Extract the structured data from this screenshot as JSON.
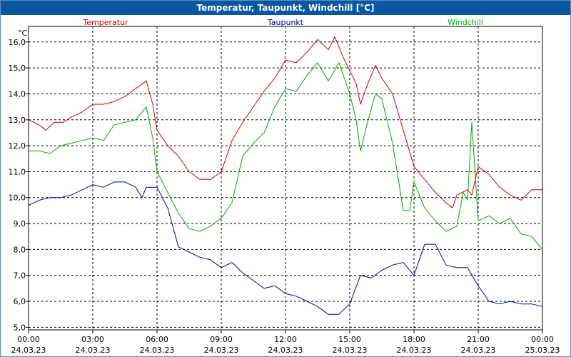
{
  "window": {
    "title": "Temperatur, Taupunkt, Windchill [°C]"
  },
  "chart_data": {
    "type": "line",
    "title": "Temperatur, Taupunkt, Windchill [°C]",
    "ylabel": "°C",
    "xlabel": "",
    "ylim": [
      4.9,
      16.6
    ],
    "xlim": [
      0,
      24
    ],
    "grid": true,
    "yticks": [
      5.0,
      6.0,
      7.0,
      8.0,
      9.0,
      10.0,
      11.0,
      12.0,
      13.0,
      14.0,
      15.0,
      16.0
    ],
    "ytick_labels": [
      "5,0",
      "6,0",
      "7,0",
      "8,0",
      "9,0",
      "10,0",
      "11,0",
      "12,0",
      "13,0",
      "14,0",
      "15,0",
      "16,0"
    ],
    "xticks": [
      0,
      3,
      6,
      9,
      12,
      15,
      18,
      21,
      24
    ],
    "xtick_labels": [
      {
        "time": "00:00",
        "date": "24.03.23"
      },
      {
        "time": "03:00",
        "date": "24.03.23"
      },
      {
        "time": "06:00",
        "date": "24.03.23"
      },
      {
        "time": "09:00",
        "date": "24.03.23"
      },
      {
        "time": "12:00",
        "date": "24.03.23"
      },
      {
        "time": "15:00",
        "date": "24.03.23"
      },
      {
        "time": "18:00",
        "date": "24.03.23"
      },
      {
        "time": "21:00",
        "date": "24.03.23"
      },
      {
        "time": "00:00",
        "date": "25.03.23"
      }
    ],
    "series": [
      {
        "name": "Temperatur",
        "color": "#cc0000",
        "points": [
          [
            0,
            13.0
          ],
          [
            0.5,
            12.8
          ],
          [
            0.8,
            12.6
          ],
          [
            1.2,
            12.9
          ],
          [
            1.6,
            12.9
          ],
          [
            2.0,
            13.1
          ],
          [
            2.5,
            13.3
          ],
          [
            3.0,
            13.6
          ],
          [
            3.5,
            13.6
          ],
          [
            4.0,
            13.7
          ],
          [
            4.5,
            13.9
          ],
          [
            5.0,
            14.2
          ],
          [
            5.5,
            14.5
          ],
          [
            5.8,
            13.6
          ],
          [
            6.0,
            12.6
          ],
          [
            6.5,
            12.0
          ],
          [
            7.0,
            11.6
          ],
          [
            7.5,
            11.0
          ],
          [
            8.0,
            10.7
          ],
          [
            8.5,
            10.7
          ],
          [
            9.0,
            11.0
          ],
          [
            9.5,
            12.2
          ],
          [
            10.0,
            12.9
          ],
          [
            10.5,
            13.5
          ],
          [
            11.0,
            14.1
          ],
          [
            11.5,
            14.6
          ],
          [
            12.0,
            15.3
          ],
          [
            12.5,
            15.2
          ],
          [
            13.0,
            15.6
          ],
          [
            13.5,
            16.1
          ],
          [
            14.0,
            15.7
          ],
          [
            14.3,
            16.2
          ],
          [
            14.7,
            15.4
          ],
          [
            15.0,
            14.9
          ],
          [
            15.3,
            14.4
          ],
          [
            15.5,
            13.6
          ],
          [
            15.8,
            14.3
          ],
          [
            16.2,
            15.1
          ],
          [
            16.5,
            14.6
          ],
          [
            17.0,
            14.0
          ],
          [
            17.5,
            12.6
          ],
          [
            18.0,
            11.2
          ],
          [
            18.5,
            10.7
          ],
          [
            19.0,
            10.2
          ],
          [
            19.5,
            9.8
          ],
          [
            19.8,
            9.6
          ],
          [
            20.0,
            10.1
          ],
          [
            20.5,
            10.3
          ],
          [
            20.7,
            10.1
          ],
          [
            21.0,
            11.2
          ],
          [
            21.5,
            10.9
          ],
          [
            22.0,
            10.4
          ],
          [
            22.5,
            10.1
          ],
          [
            23.0,
            9.9
          ],
          [
            23.5,
            10.3
          ],
          [
            24.0,
            10.3
          ]
        ]
      },
      {
        "name": "Taupunkt",
        "color": "#0000aa",
        "points": [
          [
            0,
            9.7
          ],
          [
            0.5,
            9.9
          ],
          [
            1.0,
            10.0
          ],
          [
            1.5,
            10.0
          ],
          [
            2.0,
            10.1
          ],
          [
            2.5,
            10.3
          ],
          [
            3.0,
            10.5
          ],
          [
            3.5,
            10.4
          ],
          [
            4.0,
            10.6
          ],
          [
            4.5,
            10.6
          ],
          [
            5.0,
            10.4
          ],
          [
            5.3,
            10.0
          ],
          [
            5.5,
            10.4
          ],
          [
            6.0,
            10.4
          ],
          [
            6.5,
            9.6
          ],
          [
            7.0,
            8.1
          ],
          [
            7.5,
            7.9
          ],
          [
            8.0,
            7.7
          ],
          [
            8.5,
            7.6
          ],
          [
            9.0,
            7.3
          ],
          [
            9.5,
            7.5
          ],
          [
            10.0,
            7.1
          ],
          [
            10.5,
            6.8
          ],
          [
            11.0,
            6.5
          ],
          [
            11.5,
            6.6
          ],
          [
            12.0,
            6.3
          ],
          [
            12.5,
            6.2
          ],
          [
            13.0,
            6.0
          ],
          [
            13.5,
            5.8
          ],
          [
            14.0,
            5.5
          ],
          [
            14.5,
            5.5
          ],
          [
            15.0,
            5.9
          ],
          [
            15.5,
            7.0
          ],
          [
            16.0,
            6.9
          ],
          [
            16.5,
            7.2
          ],
          [
            17.0,
            7.4
          ],
          [
            17.5,
            7.5
          ],
          [
            18.0,
            7.0
          ],
          [
            18.5,
            8.2
          ],
          [
            19.0,
            8.2
          ],
          [
            19.5,
            7.4
          ],
          [
            20.0,
            7.3
          ],
          [
            20.5,
            7.3
          ],
          [
            21.0,
            6.6
          ],
          [
            21.5,
            6.0
          ],
          [
            22.0,
            5.9
          ],
          [
            22.5,
            6.0
          ],
          [
            23.0,
            5.9
          ],
          [
            23.5,
            5.9
          ],
          [
            24.0,
            5.8
          ]
        ]
      },
      {
        "name": "Windchill",
        "color": "#00aa00",
        "points": [
          [
            0,
            11.8
          ],
          [
            0.5,
            11.8
          ],
          [
            1.0,
            11.7
          ],
          [
            1.5,
            12.0
          ],
          [
            2.0,
            12.1
          ],
          [
            2.5,
            12.2
          ],
          [
            3.0,
            12.3
          ],
          [
            3.5,
            12.2
          ],
          [
            4.0,
            12.8
          ],
          [
            4.5,
            12.9
          ],
          [
            5.0,
            13.0
          ],
          [
            5.5,
            13.5
          ],
          [
            5.8,
            12.3
          ],
          [
            6.0,
            11.0
          ],
          [
            6.5,
            10.2
          ],
          [
            7.0,
            9.4
          ],
          [
            7.5,
            8.8
          ],
          [
            8.0,
            8.7
          ],
          [
            8.5,
            8.9
          ],
          [
            9.0,
            9.2
          ],
          [
            9.5,
            9.8
          ],
          [
            10.0,
            11.6
          ],
          [
            10.5,
            12.1
          ],
          [
            11.0,
            12.5
          ],
          [
            11.5,
            13.5
          ],
          [
            12.0,
            14.2
          ],
          [
            12.5,
            14.1
          ],
          [
            13.0,
            14.7
          ],
          [
            13.5,
            15.2
          ],
          [
            14.0,
            14.5
          ],
          [
            14.5,
            15.2
          ],
          [
            15.0,
            14.0
          ],
          [
            15.3,
            13.0
          ],
          [
            15.5,
            11.8
          ],
          [
            15.8,
            12.8
          ],
          [
            16.2,
            14.0
          ],
          [
            16.5,
            13.8
          ],
          [
            17.0,
            12.1
          ],
          [
            17.5,
            9.5
          ],
          [
            17.8,
            9.5
          ],
          [
            18.0,
            10.6
          ],
          [
            18.5,
            9.6
          ],
          [
            19.0,
            9.1
          ],
          [
            19.5,
            8.7
          ],
          [
            20.0,
            8.9
          ],
          [
            20.3,
            10.2
          ],
          [
            20.5,
            9.9
          ],
          [
            20.7,
            12.9
          ],
          [
            21.0,
            9.1
          ],
          [
            21.5,
            9.3
          ],
          [
            22.0,
            9.0
          ],
          [
            22.5,
            9.2
          ],
          [
            23.0,
            8.6
          ],
          [
            23.5,
            8.5
          ],
          [
            24.0,
            8.0
          ]
        ]
      }
    ]
  }
}
